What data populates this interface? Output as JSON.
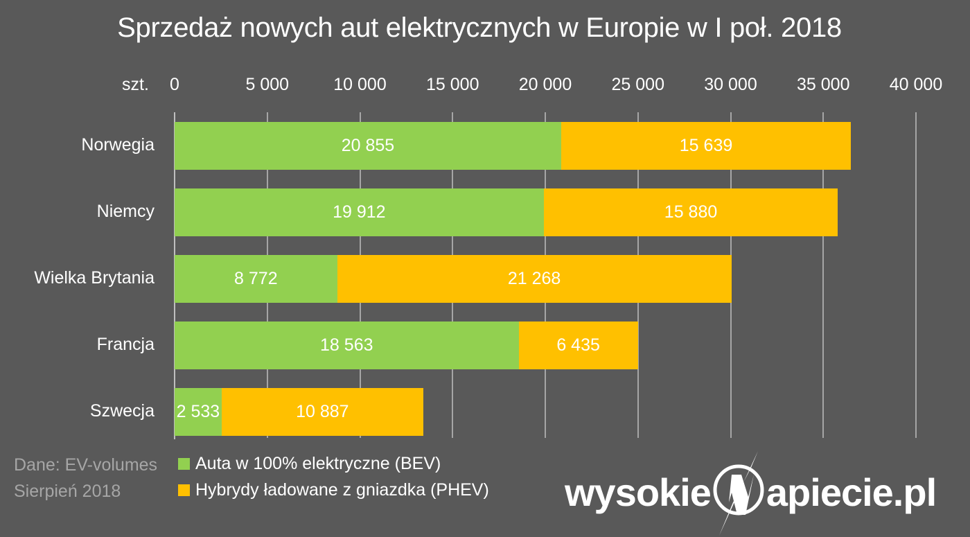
{
  "title": "Sprzedaż nowych aut elektrycznych w Europie w I poł. 2018",
  "axis": {
    "unit_label": "szt.",
    "ticks": [
      "0",
      "5 000",
      "10 000",
      "15 000",
      "20 000",
      "25 000",
      "30 000",
      "35 000",
      "40 000"
    ]
  },
  "legend": {
    "bev": "Auta w 100% elektryczne (BEV)",
    "phev": "Hybrydy ładowane z gniazdka (PHEV)"
  },
  "source": {
    "line1": "Dane: EV-volumes",
    "line2": "Sierpień 2018"
  },
  "logo": {
    "left": "wysokie",
    "right": "apiecie.pl"
  },
  "colors": {
    "background": "#595959",
    "bev": "#92D050",
    "phev": "#FFC000"
  },
  "rows": [
    {
      "country": "Norwegia",
      "bev_label": "20 855",
      "phev_label": "15 639"
    },
    {
      "country": "Niemcy",
      "bev_label": "19 912",
      "phev_label": "15 880"
    },
    {
      "country": "Wielka Brytania",
      "bev_label": "8 772",
      "phev_label": "21 268"
    },
    {
      "country": "Francja",
      "bev_label": "18 563",
      "phev_label": "6 435"
    },
    {
      "country": "Szwecja",
      "bev_label": "2 533",
      "phev_label": "10 887"
    }
  ],
  "chart_data": {
    "type": "bar",
    "orientation": "horizontal",
    "stacked": true,
    "title": "Sprzedaż nowych aut elektrycznych w Europie w I poł. 2018",
    "xlabel": "szt.",
    "ylabel": "",
    "xlim": [
      0,
      40000
    ],
    "x_ticks": [
      0,
      5000,
      10000,
      15000,
      20000,
      25000,
      30000,
      35000,
      40000
    ],
    "grid": true,
    "legend_position": "bottom-left",
    "categories": [
      "Norwegia",
      "Niemcy",
      "Wielka Brytania",
      "Francja",
      "Szwecja"
    ],
    "series": [
      {
        "name": "Auta w 100% elektryczne (BEV)",
        "color": "#92D050",
        "values": [
          20855,
          19912,
          8772,
          18563,
          2533
        ]
      },
      {
        "name": "Hybrydy ładowane z gniazdka (PHEV)",
        "color": "#FFC000",
        "values": [
          15639,
          15880,
          21268,
          6435,
          10887
        ]
      }
    ],
    "annotations": [
      "Dane: EV-volumes",
      "Sierpień 2018",
      "wysokieNapiecie.pl"
    ]
  }
}
